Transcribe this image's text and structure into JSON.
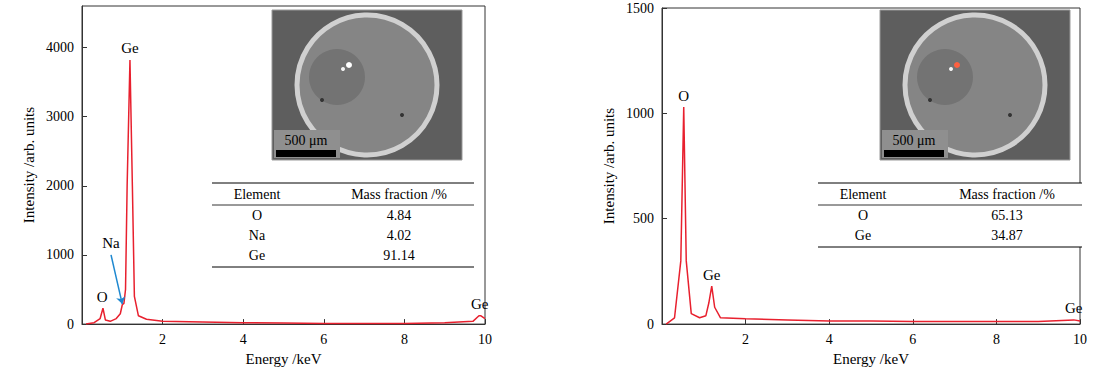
{
  "chart_data": [
    {
      "type": "line",
      "x_label": "Energy /keV",
      "y_label": "Intensity /arb. units",
      "xlim": [
        0,
        10
      ],
      "xticks": [
        2,
        4,
        6,
        8,
        10
      ],
      "ylim": [
        0,
        4600
      ],
      "yticks": [
        0,
        1000,
        2000,
        3000,
        4000
      ],
      "grid": false,
      "color": "#e8202e",
      "x": [
        0.1,
        0.3,
        0.45,
        0.52,
        0.58,
        0.7,
        0.85,
        0.95,
        1.0,
        1.04,
        1.08,
        1.12,
        1.19,
        1.25,
        1.3,
        1.4,
        1.6,
        2.0,
        3.0,
        4.0,
        5.0,
        6.0,
        7.0,
        8.0,
        9.0,
        9.7,
        9.85,
        9.9,
        10.0
      ],
      "values": [
        0,
        20,
        80,
        230,
        60,
        40,
        80,
        150,
        280,
        300,
        500,
        2000,
        3820,
        2000,
        400,
        120,
        70,
        40,
        30,
        20,
        15,
        10,
        10,
        10,
        20,
        40,
        120,
        120,
        80
      ],
      "annotations": [
        {
          "text": "Ge",
          "x": 1.19,
          "y": 3820
        },
        {
          "text": "O",
          "x": 0.5,
          "y": 230
        },
        {
          "text": "Na",
          "x": 0.72,
          "y": 1000,
          "points_to": [
            1.0,
            290
          ]
        },
        {
          "text": "Ge",
          "x": 9.87,
          "y": 130
        }
      ],
      "inset": {
        "scale_bar": "500 μm"
      },
      "table": {
        "columns": [
          "Element",
          "Mass fraction /%"
        ],
        "rows": [
          [
            "O",
            4.84
          ],
          [
            "Na",
            4.02
          ],
          [
            "Ge",
            91.14
          ]
        ]
      }
    },
    {
      "type": "line",
      "x_label": "Energy /keV",
      "y_label": "Intensity /arb. units",
      "xlim": [
        0,
        10
      ],
      "xticks": [
        2,
        4,
        6,
        8,
        10
      ],
      "ylim": [
        0,
        1500
      ],
      "yticks": [
        0,
        500,
        1000,
        1500
      ],
      "grid": false,
      "color": "#e8202e",
      "x": [
        0.1,
        0.3,
        0.45,
        0.52,
        0.58,
        0.7,
        0.9,
        1.05,
        1.12,
        1.19,
        1.26,
        1.4,
        2.0,
        3.0,
        4.0,
        5.0,
        6.0,
        7.0,
        8.0,
        9.0,
        9.85,
        10.0
      ],
      "values": [
        0,
        30,
        300,
        1030,
        300,
        50,
        30,
        40,
        100,
        180,
        80,
        30,
        25,
        20,
        15,
        15,
        12,
        12,
        12,
        12,
        20,
        15
      ],
      "annotations": [
        {
          "text": "O",
          "x": 0.52,
          "y": 1030
        },
        {
          "text": "Ge",
          "x": 1.19,
          "y": 180
        },
        {
          "text": "Ge",
          "x": 9.85,
          "y": 20
        }
      ],
      "inset": {
        "scale_bar": "500 μm"
      },
      "table": {
        "columns": [
          "Element",
          "Mass fraction /%"
        ],
        "rows": [
          [
            "O",
            65.13
          ],
          [
            "Ge",
            34.87
          ]
        ]
      }
    }
  ]
}
